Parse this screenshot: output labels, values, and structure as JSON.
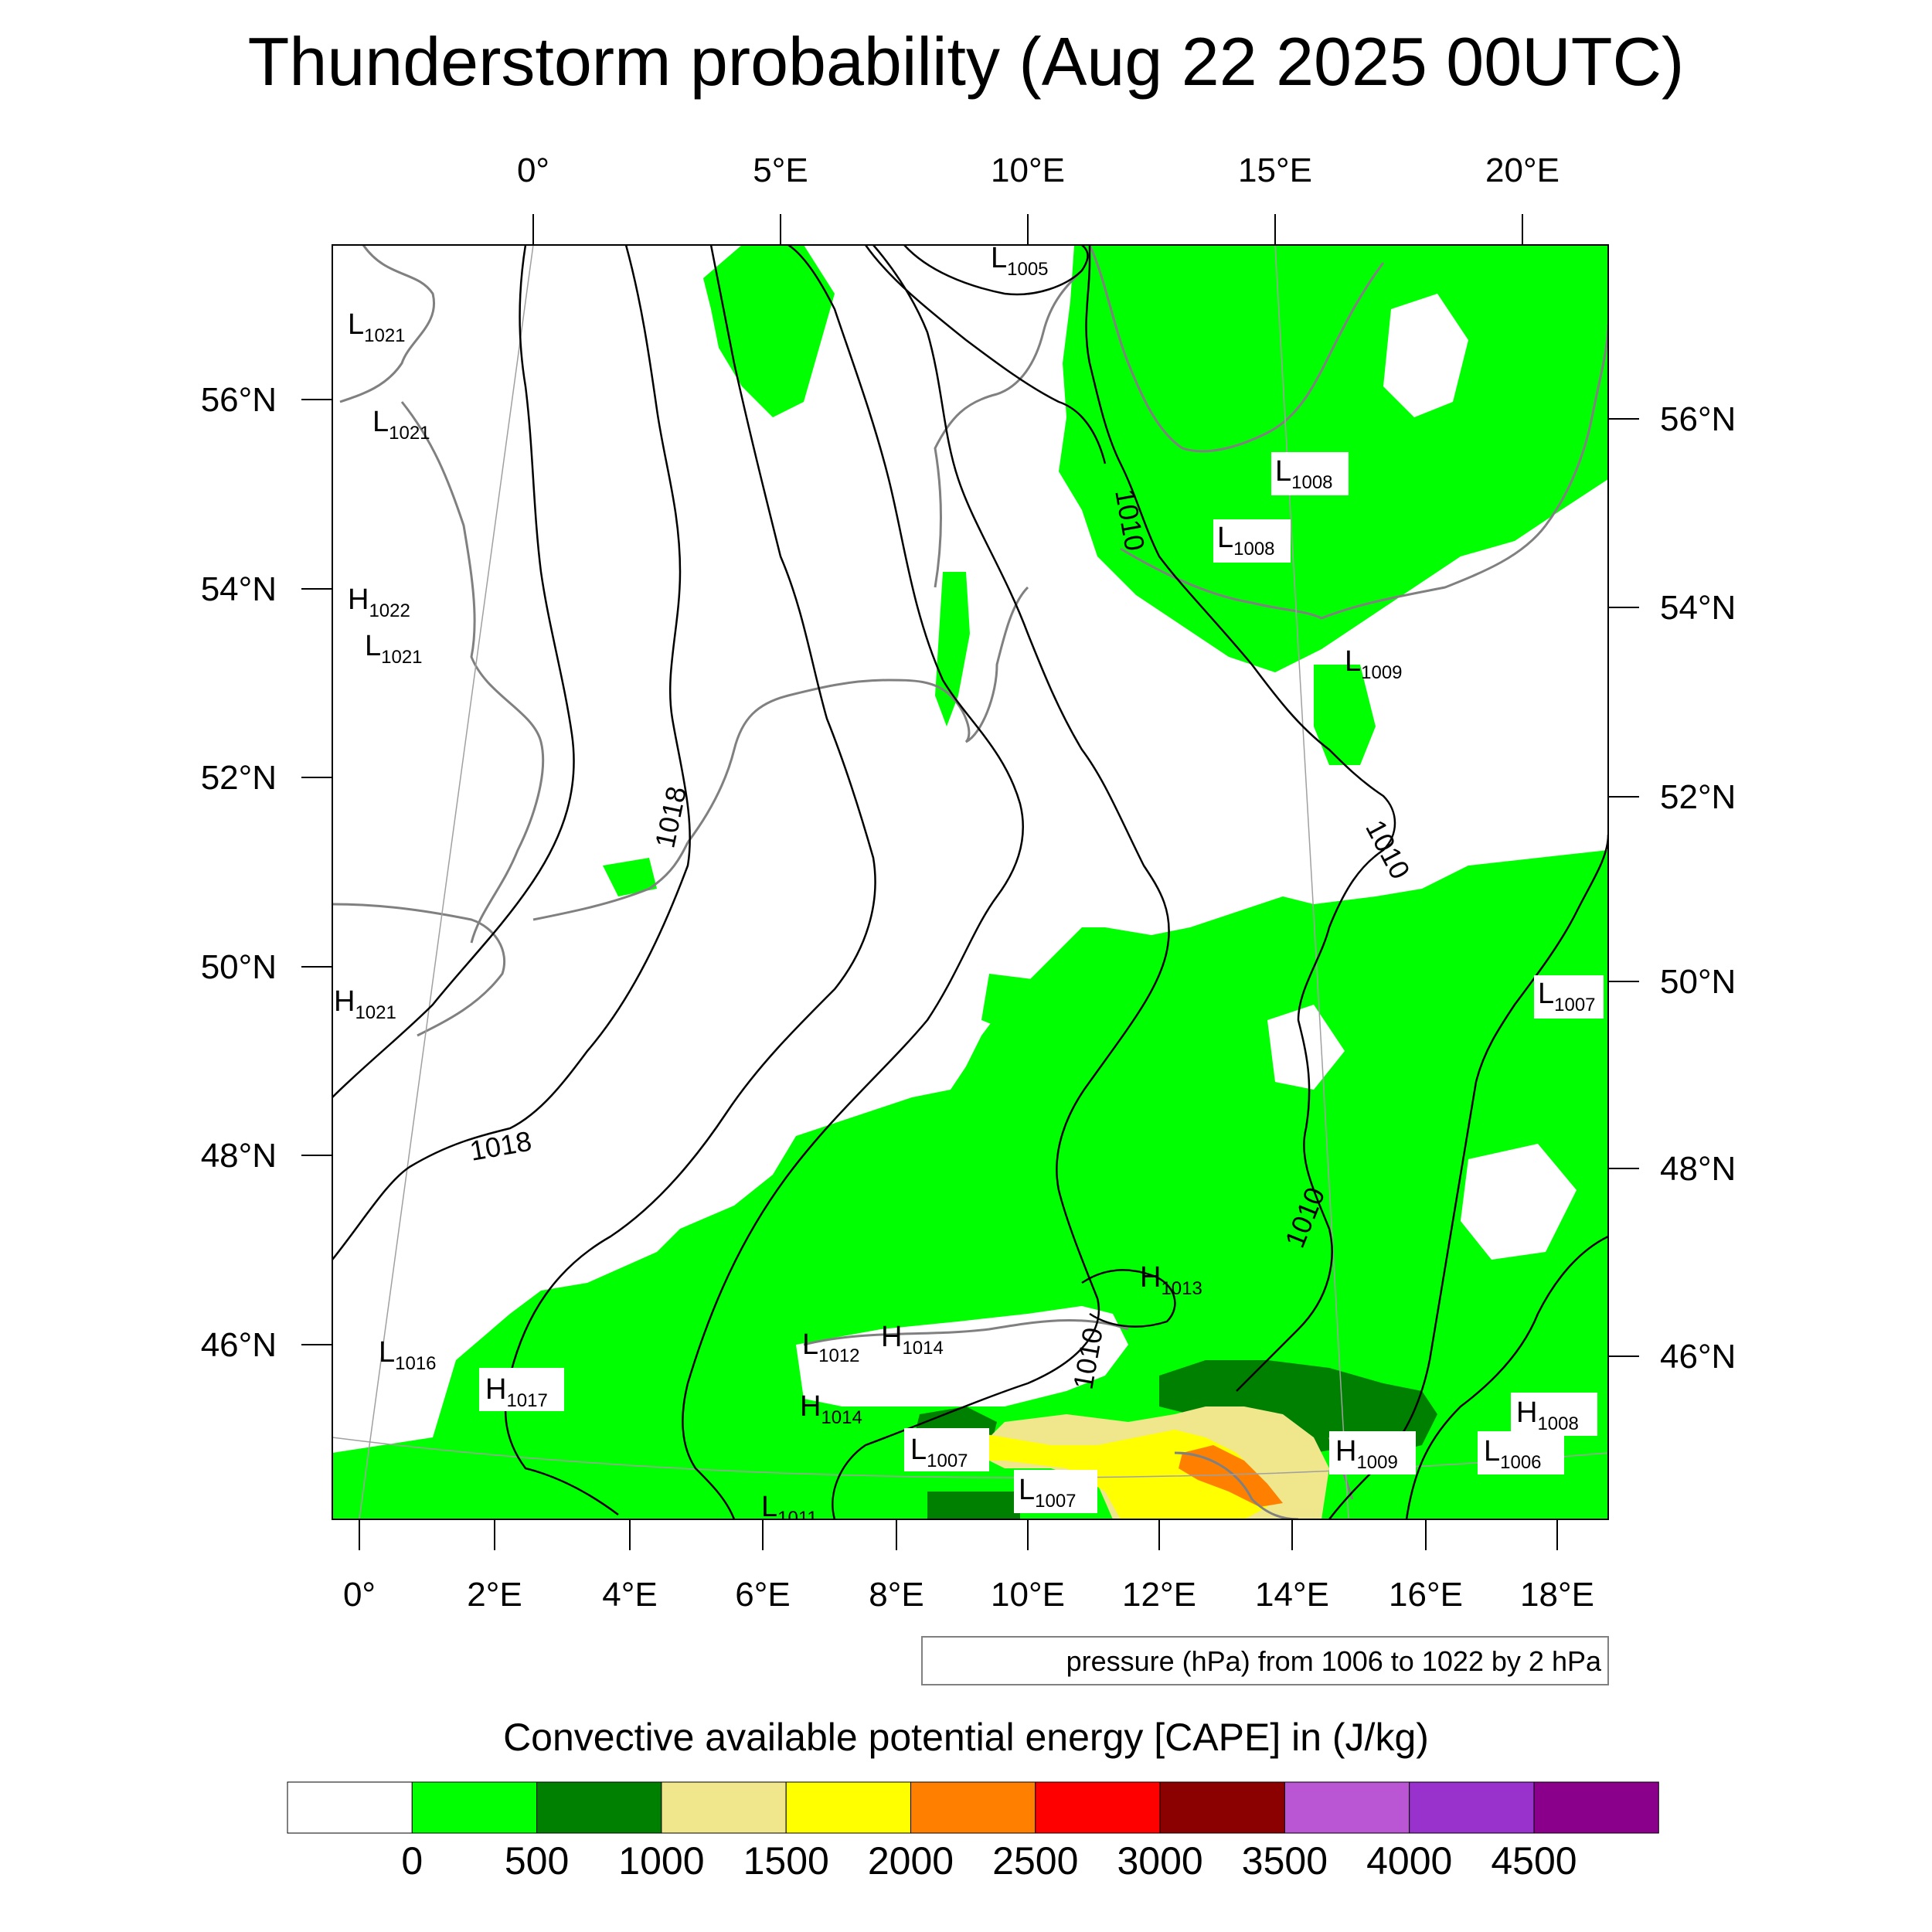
{
  "title": "Thunderstorm probability (Aug 22 2025 00UTC)",
  "top_lon_labels": [
    "0°",
    "5°E",
    "10°E",
    "15°E",
    "20°E"
  ],
  "bottom_lon_labels": [
    "0°",
    "2°E",
    "4°E",
    "6°E",
    "8°E",
    "10°E",
    "12°E",
    "14°E",
    "16°E",
    "18°E"
  ],
  "left_lat_labels": [
    "56°N",
    "54°N",
    "52°N",
    "50°N",
    "48°N",
    "46°N"
  ],
  "right_lat_labels": [
    "56°N",
    "54°N",
    "52°N",
    "50°N",
    "48°N",
    "46°N"
  ],
  "isobar_labels": [
    "1018",
    "1018",
    "1010",
    "1010",
    "1010",
    "1010"
  ],
  "pressure_centers": [
    {
      "type": "L",
      "value": "1021"
    },
    {
      "type": "L",
      "value": "1021"
    },
    {
      "type": "H",
      "value": "1022"
    },
    {
      "type": "L",
      "value": "1021"
    },
    {
      "type": "H",
      "value": "1021"
    },
    {
      "type": "L",
      "value": "1016"
    },
    {
      "type": "H",
      "value": "1017"
    },
    {
      "type": "L",
      "value": "1005"
    },
    {
      "type": "L",
      "value": "1008"
    },
    {
      "type": "L",
      "value": "1008"
    },
    {
      "type": "L",
      "value": "1009"
    },
    {
      "type": "L",
      "value": "1007"
    },
    {
      "type": "H",
      "value": "1013"
    },
    {
      "type": "L",
      "value": "1012"
    },
    {
      "type": "H",
      "value": "1014"
    },
    {
      "type": "H",
      "value": "1014"
    },
    {
      "type": "L",
      "value": "1007"
    },
    {
      "type": "L",
      "value": "1007"
    },
    {
      "type": "H",
      "value": "1009"
    },
    {
      "type": "H",
      "value": "1008"
    },
    {
      "type": "L",
      "value": "1006"
    },
    {
      "type": "L",
      "value": "1011"
    }
  ],
  "contour_note": "pressure (hPa) from 1006 to 1022 by 2 hPa",
  "colorbar": {
    "title": "Convective available potential energy [CAPE] in (J/kg)",
    "colors": [
      "#ffffff",
      "#00ff00",
      "#008000",
      "#f0e68c",
      "#ffff00",
      "#ff8000",
      "#ff0000",
      "#8b0000",
      "#ba55d3",
      "#9932cc",
      "#8b008b"
    ],
    "tick_labels": [
      "0",
      "500",
      "1000",
      "1500",
      "2000",
      "2500",
      "3000",
      "3500",
      "4000",
      "4500"
    ]
  },
  "colors": {
    "land_outline": "#808080",
    "isobar": "#000000"
  }
}
